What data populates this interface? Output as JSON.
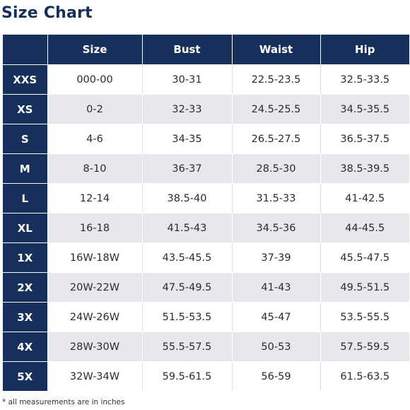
{
  "title": "Size Chart",
  "columns": [
    "Size",
    "Bust",
    "Waist",
    "Hip"
  ],
  "rows": [
    {
      "label": "XXS",
      "size": "000-00",
      "bust": "30-31",
      "waist": "22.5-23.5",
      "hip": "32.5-33.5"
    },
    {
      "label": "XS",
      "size": "0-2",
      "bust": "32-33",
      "waist": "24.5-25.5",
      "hip": "34.5-35.5"
    },
    {
      "label": "S",
      "size": "4-6",
      "bust": "34-35",
      "waist": "26.5-27.5",
      "hip": "36.5-37.5"
    },
    {
      "label": "M",
      "size": "8-10",
      "bust": "36-37",
      "waist": "28.5-30",
      "hip": "38.5-39.5"
    },
    {
      "label": "L",
      "size": "12-14",
      "bust": "38.5-40",
      "waist": "31.5-33",
      "hip": "41-42.5"
    },
    {
      "label": "XL",
      "size": "16-18",
      "bust": "41.5-43",
      "waist": "34.5-36",
      "hip": "44-45.5"
    },
    {
      "label": "1X",
      "size": "16W-18W",
      "bust": "43.5-45.5",
      "waist": "37-39",
      "hip": "45.5-47.5"
    },
    {
      "label": "2X",
      "size": "20W-22W",
      "bust": "47.5-49.5",
      "waist": "41-43",
      "hip": "49.5-51.5"
    },
    {
      "label": "3X",
      "size": "24W-26W",
      "bust": "51.5-53.5",
      "waist": "45-47",
      "hip": "53.5-55.5"
    },
    {
      "label": "4X",
      "size": "28W-30W",
      "bust": "55.5-57.5",
      "waist": "50-53",
      "hip": "57.5-59.5"
    },
    {
      "label": "5X",
      "size": "32W-34W",
      "bust": "59.5-61.5",
      "waist": "56-59",
      "hip": "61.5-63.5"
    }
  ],
  "footnote": "* all measurements are in inches",
  "colors": {
    "header_bg": "#16305b",
    "stripe_bg": "#e6e8ed",
    "text": "#2b2b2b"
  }
}
